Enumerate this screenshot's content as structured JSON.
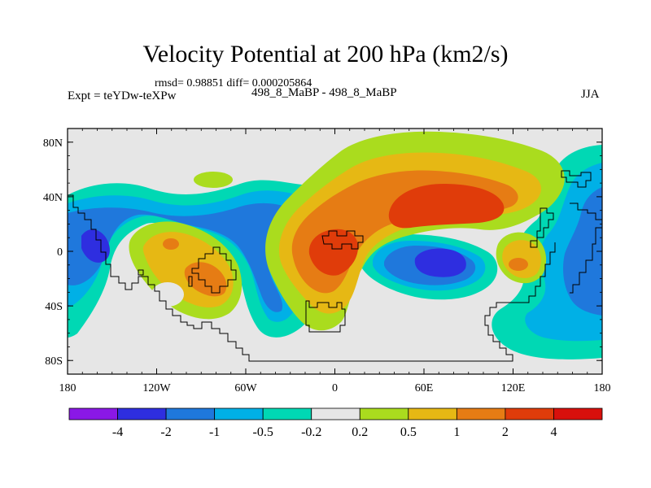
{
  "chart_data": {
    "type": "contour-map",
    "title": "Velocity Potential at 200 hPa (km2/s)",
    "stats": "rmsd= 0.98851 diff= 0.000205864",
    "left_label": "Expt = teYDw-teXPw",
    "center_label": "498_8_MaBP - 498_8_MaBP",
    "right_label": "JJA",
    "x_ticks": [
      "180",
      "120W",
      "60W",
      "0",
      "60E",
      "120E",
      "180"
    ],
    "x_tick_values": [
      -180,
      -120,
      -60,
      0,
      60,
      120,
      180
    ],
    "y_ticks": [
      "80N",
      "40N",
      "0",
      "40S",
      "80S"
    ],
    "y_tick_values": [
      80,
      40,
      0,
      -40,
      -80
    ],
    "xlim": [
      -180,
      180
    ],
    "ylim": [
      -90,
      90
    ],
    "colorbar": {
      "levels": [
        "-4",
        "-2",
        "-1",
        "-0.5",
        "-0.2",
        "0.2",
        "0.5",
        "1",
        "2",
        "4"
      ],
      "colors": [
        "#8a18e6",
        "#2e2ee0",
        "#1f78dc",
        "#00b0e6",
        "#00d8b4",
        "#e6e6e6",
        "#aadc1e",
        "#e6b814",
        "#e67c14",
        "#e03c0a",
        "#d8100c"
      ]
    },
    "regions": [
      {
        "name": "positive-max-central-asia",
        "lon": 70,
        "lat": 20,
        "value": 3
      },
      {
        "name": "positive-west-africa",
        "lon": -5,
        "lat": -5,
        "value": 3
      },
      {
        "name": "positive-south-america",
        "lon": -90,
        "lat": -20,
        "value": 1.5
      },
      {
        "name": "negative-min-indian-ocean",
        "lon": 75,
        "lat": -15,
        "value": -3
      },
      {
        "name": "negative-east-pacific",
        "lon": -150,
        "lat": -5,
        "value": -2.5
      },
      {
        "name": "negative-west-pacific",
        "lon": 160,
        "lat": -20,
        "value": -1.5
      }
    ]
  }
}
